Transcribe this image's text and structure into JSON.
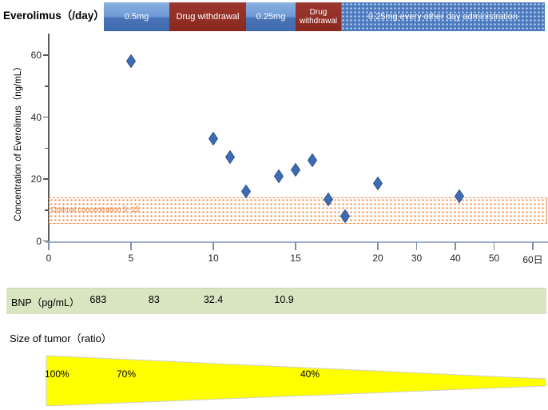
{
  "title": "Everolimus（/day）",
  "dose_bar": {
    "segments": [
      {
        "label": "0.5mg",
        "kind": "dose"
      },
      {
        "label": "Drug withdrawal",
        "kind": "withdrawal"
      },
      {
        "label": "0.25mg",
        "kind": "dose"
      },
      {
        "label": "Drug withdrawal",
        "kind": "withdrawal"
      },
      {
        "label": "0.25mg  every other day administration",
        "kind": "dose-dotted"
      }
    ]
  },
  "chart_data": {
    "type": "scatter",
    "ylabel": "Concentration of Everolimus（ng/mL）",
    "xlabel_unit": "日",
    "ylim": [
      0,
      65
    ],
    "y_ticks": [
      0,
      20,
      40,
      60
    ],
    "y_minor_ticks": [
      10,
      30,
      50
    ],
    "x_ticks": [
      {
        "day": 0,
        "label": "0"
      },
      {
        "day": 5,
        "label": "5"
      },
      {
        "day": 10,
        "label": "10"
      },
      {
        "day": 15,
        "label": "15"
      },
      {
        "day": 20,
        "label": "20"
      },
      {
        "day": 30,
        "label": "30"
      },
      {
        "day": 40,
        "label": "40"
      },
      {
        "day": 50,
        "label": "50"
      },
      {
        "day": 60,
        "label": "60日"
      }
    ],
    "points": [
      {
        "day": 5,
        "value": 58
      },
      {
        "day": 10,
        "value": 33
      },
      {
        "day": 11,
        "value": 27
      },
      {
        "day": 12,
        "value": 16
      },
      {
        "day": 14,
        "value": 21
      },
      {
        "day": 15,
        "value": 23
      },
      {
        "day": 16,
        "value": 26
      },
      {
        "day": 17,
        "value": 13.5
      },
      {
        "day": 18,
        "value": 8
      },
      {
        "day": 20,
        "value": 18.5
      },
      {
        "day": 41,
        "value": 14.5
      }
    ],
    "optimal_band": {
      "label": "Optimal concentration 5~15",
      "from": 5.6,
      "to": 14
    },
    "marker_color": "#3F6BB5",
    "marker_stroke": "#2C5590",
    "band_color": "#ED7D31"
  },
  "bnp": {
    "label": "BNP（pg/mL）",
    "values": [
      {
        "day": 3,
        "value": "683"
      },
      {
        "day": 6.4,
        "value": "83"
      },
      {
        "day": 10,
        "value": "32.4"
      },
      {
        "day": 14.3,
        "value": "10.9"
      }
    ],
    "band_color": "#D9E5C0"
  },
  "tumor": {
    "label": "Size of tumor（ratio）",
    "percent_labels": [
      "100%",
      "70%",
      "40%"
    ],
    "color": "#FFFF00"
  },
  "colors": {
    "dose_blue": "#4470B2",
    "withdrawal_red": "#8A281F",
    "axis_gray": "#595959",
    "baseline_blue": "#9DB0CE"
  }
}
